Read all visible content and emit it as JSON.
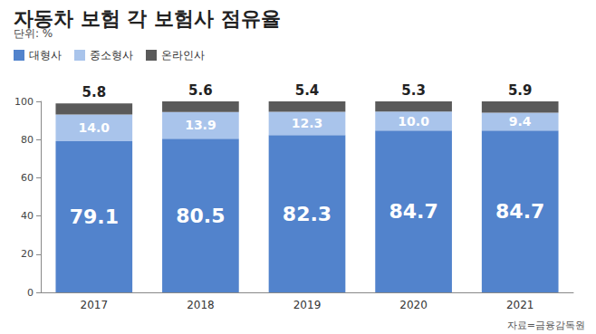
{
  "chart_data": {
    "type": "bar",
    "title": "자동차 보험 각 보험사 점유율",
    "subtitle": "단위: %",
    "annotations": [
      "자료=금융감독원"
    ],
    "categories": [
      "2017",
      "2018",
      "2019",
      "2020",
      "2021"
    ],
    "series": [
      {
        "name": "대형사",
        "color": "#5283cc",
        "values": [
          79.1,
          80.5,
          82.3,
          84.7,
          84.7
        ],
        "value_labels": [
          "79.1",
          "80.5",
          "82.3",
          "84.7",
          "84.7"
        ]
      },
      {
        "name": "중소형사",
        "color": "#a9c4eb",
        "values": [
          14.0,
          13.9,
          12.3,
          10.0,
          9.4
        ],
        "value_labels": [
          "14.0",
          "13.9",
          "12.3",
          "10.0",
          "9.4"
        ]
      },
      {
        "name": "온라인사",
        "color": "#5a5a5a",
        "values": [
          5.8,
          5.6,
          5.4,
          5.3,
          5.9
        ],
        "value_labels": [
          "5.8",
          "5.6",
          "5.4",
          "5.3",
          "5.9"
        ]
      }
    ],
    "stacked": true,
    "data_labels": true,
    "legend": "top-left",
    "grid": false,
    "ylim": [
      0,
      100
    ],
    "yticks": [
      0,
      20,
      40,
      60,
      80,
      100
    ]
  }
}
